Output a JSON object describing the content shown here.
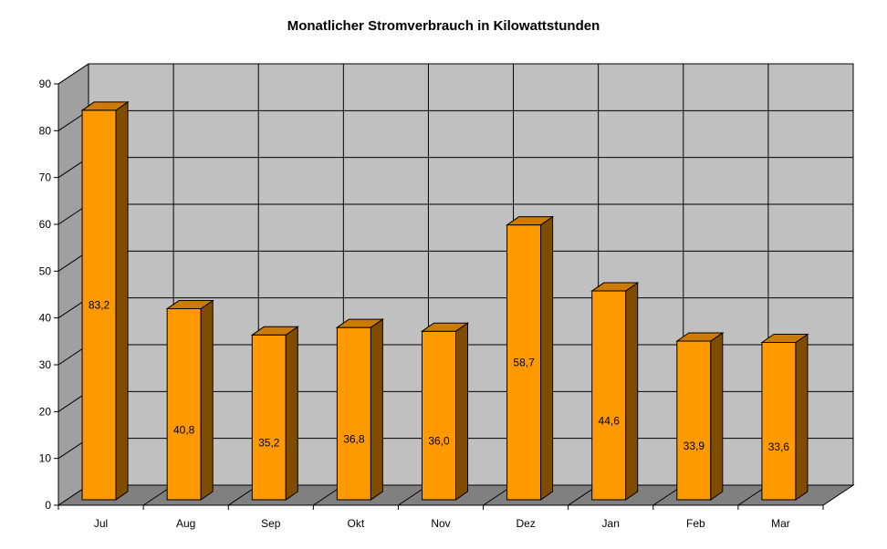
{
  "chart_data": {
    "type": "bar",
    "title": "Monatlicher Stromverbrauch in Kilowattstunden",
    "xlabel": "",
    "ylabel": "",
    "categories": [
      "Jul",
      "Aug",
      "Sep",
      "Okt",
      "Nov",
      "Dez",
      "Jan",
      "Feb",
      "Mar"
    ],
    "values": [
      83.2,
      40.8,
      35.2,
      36.8,
      36.0,
      58.7,
      44.6,
      33.9,
      33.6
    ],
    "value_labels": [
      "83,2",
      "40,8",
      "35,2",
      "36,8",
      "36,0",
      "58,7",
      "44,6",
      "33,9",
      "33,6"
    ],
    "ylim": [
      0,
      90
    ],
    "yticks": [
      0,
      10,
      20,
      30,
      40,
      50,
      60,
      70,
      80,
      90
    ],
    "grid": true,
    "style": "3d",
    "colors": {
      "bar_front": "#ff9900",
      "bar_top": "#cc7a00",
      "bar_side": "#7f4c00",
      "wall": "#c0c0c0",
      "side_wall": "#a0a0a0",
      "floor": "#808080",
      "gridline": "#000000"
    }
  }
}
